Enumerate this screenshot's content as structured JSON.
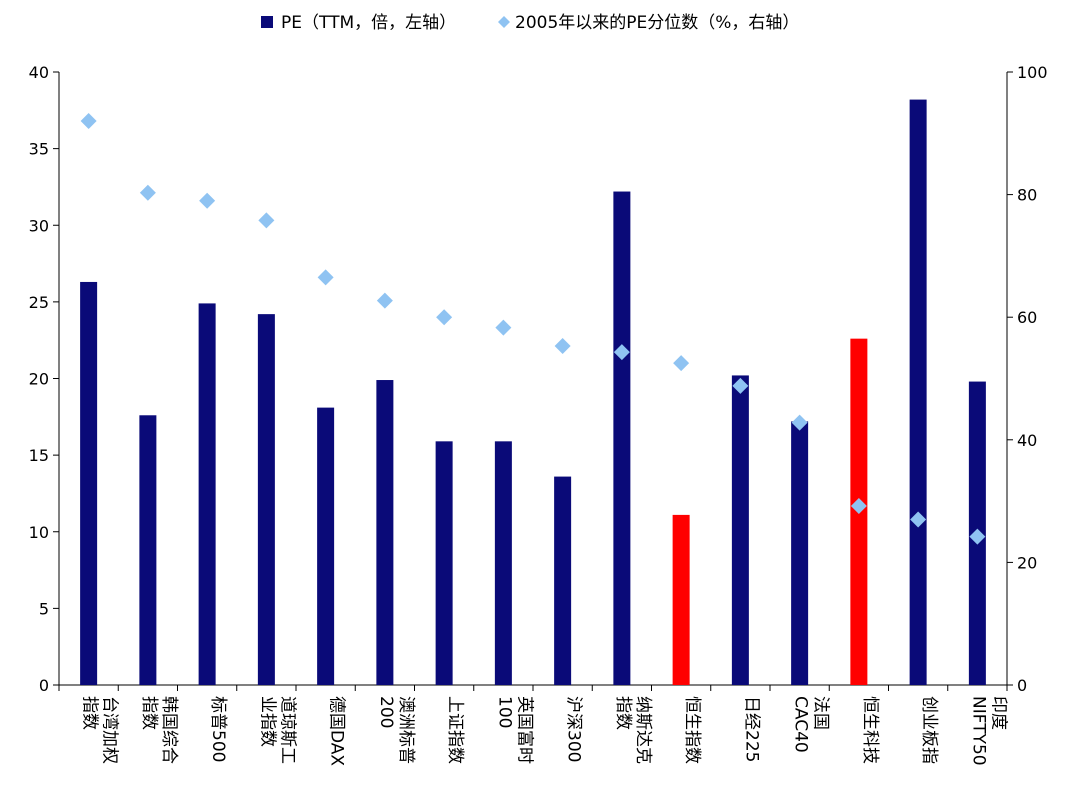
{
  "chart_data": {
    "type": "bar",
    "legend": {
      "position": "top",
      "items": [
        {
          "label": "PE（TTM，倍，左轴）",
          "marker": "square",
          "color": "#0a0a78"
        },
        {
          "label": "2005年以来的PE分位数（%，右轴）",
          "marker": "diamond",
          "color": "#8fc3f2"
        }
      ]
    },
    "categories": [
      {
        "lines": [
          "台湾加权",
          "指数"
        ]
      },
      {
        "lines": [
          "韩国综合",
          "指数"
        ]
      },
      {
        "lines": [
          "标普500"
        ]
      },
      {
        "lines": [
          "道琼斯工",
          "业指数"
        ]
      },
      {
        "lines": [
          "德国DAX"
        ]
      },
      {
        "lines": [
          "澳洲标普",
          "200"
        ]
      },
      {
        "lines": [
          "上证指数"
        ]
      },
      {
        "lines": [
          "英国富时",
          "100"
        ]
      },
      {
        "lines": [
          "沪深300"
        ]
      },
      {
        "lines": [
          "纳斯达克",
          "指数"
        ]
      },
      {
        "lines": [
          "恒生指数"
        ]
      },
      {
        "lines": [
          "日经225"
        ]
      },
      {
        "lines": [
          "法国",
          "CAC40"
        ]
      },
      {
        "lines": [
          "恒生科技"
        ]
      },
      {
        "lines": [
          "创业板指"
        ]
      },
      {
        "lines": [
          "印度",
          "NIFTY50"
        ]
      }
    ],
    "series": [
      {
        "name": "PE（TTM，倍，左轴）",
        "type": "bar",
        "axis": "left",
        "values": [
          26.3,
          17.6,
          24.9,
          24.2,
          18.1,
          19.9,
          15.9,
          15.9,
          13.6,
          32.2,
          11.1,
          20.2,
          17.2,
          22.6,
          38.2,
          19.8
        ],
        "colors": [
          "#0a0a78",
          "#0a0a78",
          "#0a0a78",
          "#0a0a78",
          "#0a0a78",
          "#0a0a78",
          "#0a0a78",
          "#0a0a78",
          "#0a0a78",
          "#0a0a78",
          "#ff0000",
          "#0a0a78",
          "#0a0a78",
          "#ff0000",
          "#0a0a78",
          "#0a0a78"
        ]
      },
      {
        "name": "2005年以来的PE分位数（%，右轴）",
        "type": "scatter",
        "axis": "right",
        "marker": "diamond",
        "color": "#8fc3f2",
        "values": [
          92.0,
          80.3,
          79.0,
          75.8,
          66.5,
          62.7,
          60.0,
          58.3,
          55.3,
          54.3,
          52.5,
          48.8,
          42.8,
          29.2,
          27.0,
          24.2
        ]
      }
    ],
    "y_left": {
      "min": 0,
      "max": 40,
      "ticks": [
        "0",
        "5",
        "10",
        "15",
        "20",
        "25",
        "30",
        "35",
        "40"
      ]
    },
    "y_right": {
      "min": 0,
      "max": 100,
      "ticks": [
        "0",
        "20",
        "40",
        "60",
        "80",
        "100"
      ]
    },
    "grid": false
  }
}
